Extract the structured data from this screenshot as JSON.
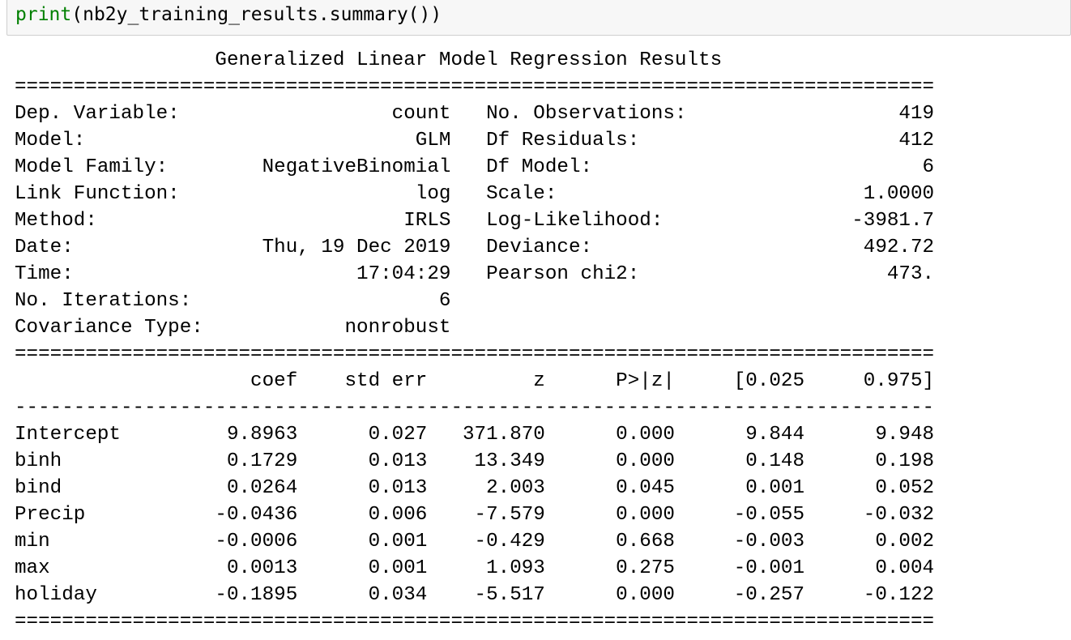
{
  "code": {
    "fn": "print",
    "rest": "(nb2y_training_results.summary())"
  },
  "summary": {
    "title": "Generalized Linear Model Regression Results",
    "info": [
      {
        "l_label": "Dep. Variable:",
        "l_value": "count",
        "r_label": "No. Observations:",
        "r_value": "419"
      },
      {
        "l_label": "Model:",
        "l_value": "GLM",
        "r_label": "Df Residuals:",
        "r_value": "412"
      },
      {
        "l_label": "Model Family:",
        "l_value": "NegativeBinomial",
        "r_label": "Df Model:",
        "r_value": "6"
      },
      {
        "l_label": "Link Function:",
        "l_value": "log",
        "r_label": "Scale:",
        "r_value": "1.0000"
      },
      {
        "l_label": "Method:",
        "l_value": "IRLS",
        "r_label": "Log-Likelihood:",
        "r_value": "-3981.7"
      },
      {
        "l_label": "Date:",
        "l_value": "Thu, 19 Dec 2019",
        "r_label": "Deviance:",
        "r_value": "492.72"
      },
      {
        "l_label": "Time:",
        "l_value": "17:04:29",
        "r_label": "Pearson chi2:",
        "r_value": "473."
      },
      {
        "l_label": "No. Iterations:",
        "l_value": "6",
        "r_label": "",
        "r_value": ""
      },
      {
        "l_label": "Covariance Type:",
        "l_value": "nonrobust",
        "r_label": "",
        "r_value": ""
      }
    ],
    "coef_headers": [
      "coef",
      "std err",
      "z",
      "P>|z|",
      "[0.025",
      "0.975]"
    ],
    "coef_rows": [
      {
        "name": "Intercept",
        "values": [
          "9.8963",
          "0.027",
          "371.870",
          "0.000",
          "9.844",
          "9.948"
        ]
      },
      {
        "name": "binh",
        "values": [
          "0.1729",
          "0.013",
          "13.349",
          "0.000",
          "0.148",
          "0.198"
        ]
      },
      {
        "name": "bind",
        "values": [
          "0.0264",
          "0.013",
          "2.003",
          "0.045",
          "0.001",
          "0.052"
        ]
      },
      {
        "name": "Precip",
        "values": [
          "-0.0436",
          "0.006",
          "-7.579",
          "0.000",
          "-0.055",
          "-0.032"
        ]
      },
      {
        "name": "min",
        "values": [
          "-0.0006",
          "0.001",
          "-0.429",
          "0.668",
          "-0.003",
          "0.002"
        ]
      },
      {
        "name": "max",
        "values": [
          "0.0013",
          "0.001",
          "1.093",
          "0.275",
          "-0.001",
          "0.004"
        ]
      },
      {
        "name": "holiday",
        "values": [
          "-0.1895",
          "0.034",
          "-5.517",
          "0.000",
          "-0.257",
          "-0.122"
        ]
      }
    ]
  }
}
